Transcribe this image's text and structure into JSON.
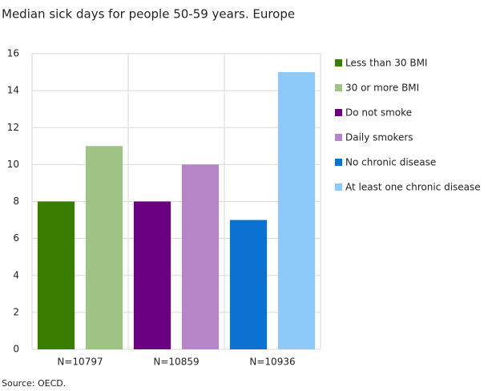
{
  "chart_data": {
    "type": "bar",
    "title": "Median sick days for people 50-59 years. Europe",
    "source": "Source: OECD.",
    "categories": [
      "N=10797",
      "N=10859",
      "N=10936"
    ],
    "series": [
      {
        "name": "Less than 30 BMI",
        "color": "#3a7e00",
        "values": [
          8,
          null,
          null
        ]
      },
      {
        "name": "30 or more BMI",
        "color": "#9dc484",
        "values": [
          11,
          null,
          null
        ]
      },
      {
        "name": "Do not smoke",
        "color": "#6b0083",
        "values": [
          null,
          8,
          null
        ]
      },
      {
        "name": "Daily smokers",
        "color": "#b585c8",
        "values": [
          null,
          10,
          null
        ]
      },
      {
        "name": "No chronic disease",
        "color": "#0b72d1",
        "values": [
          null,
          null,
          7
        ]
      },
      {
        "name": "At least one chronic disease",
        "color": "#8ec9fb",
        "values": [
          null,
          null,
          15
        ]
      }
    ],
    "ylim": [
      0,
      16
    ],
    "yticks": [
      0,
      2,
      4,
      6,
      8,
      10,
      12,
      14,
      16
    ],
    "grid": true,
    "legend": "right"
  }
}
